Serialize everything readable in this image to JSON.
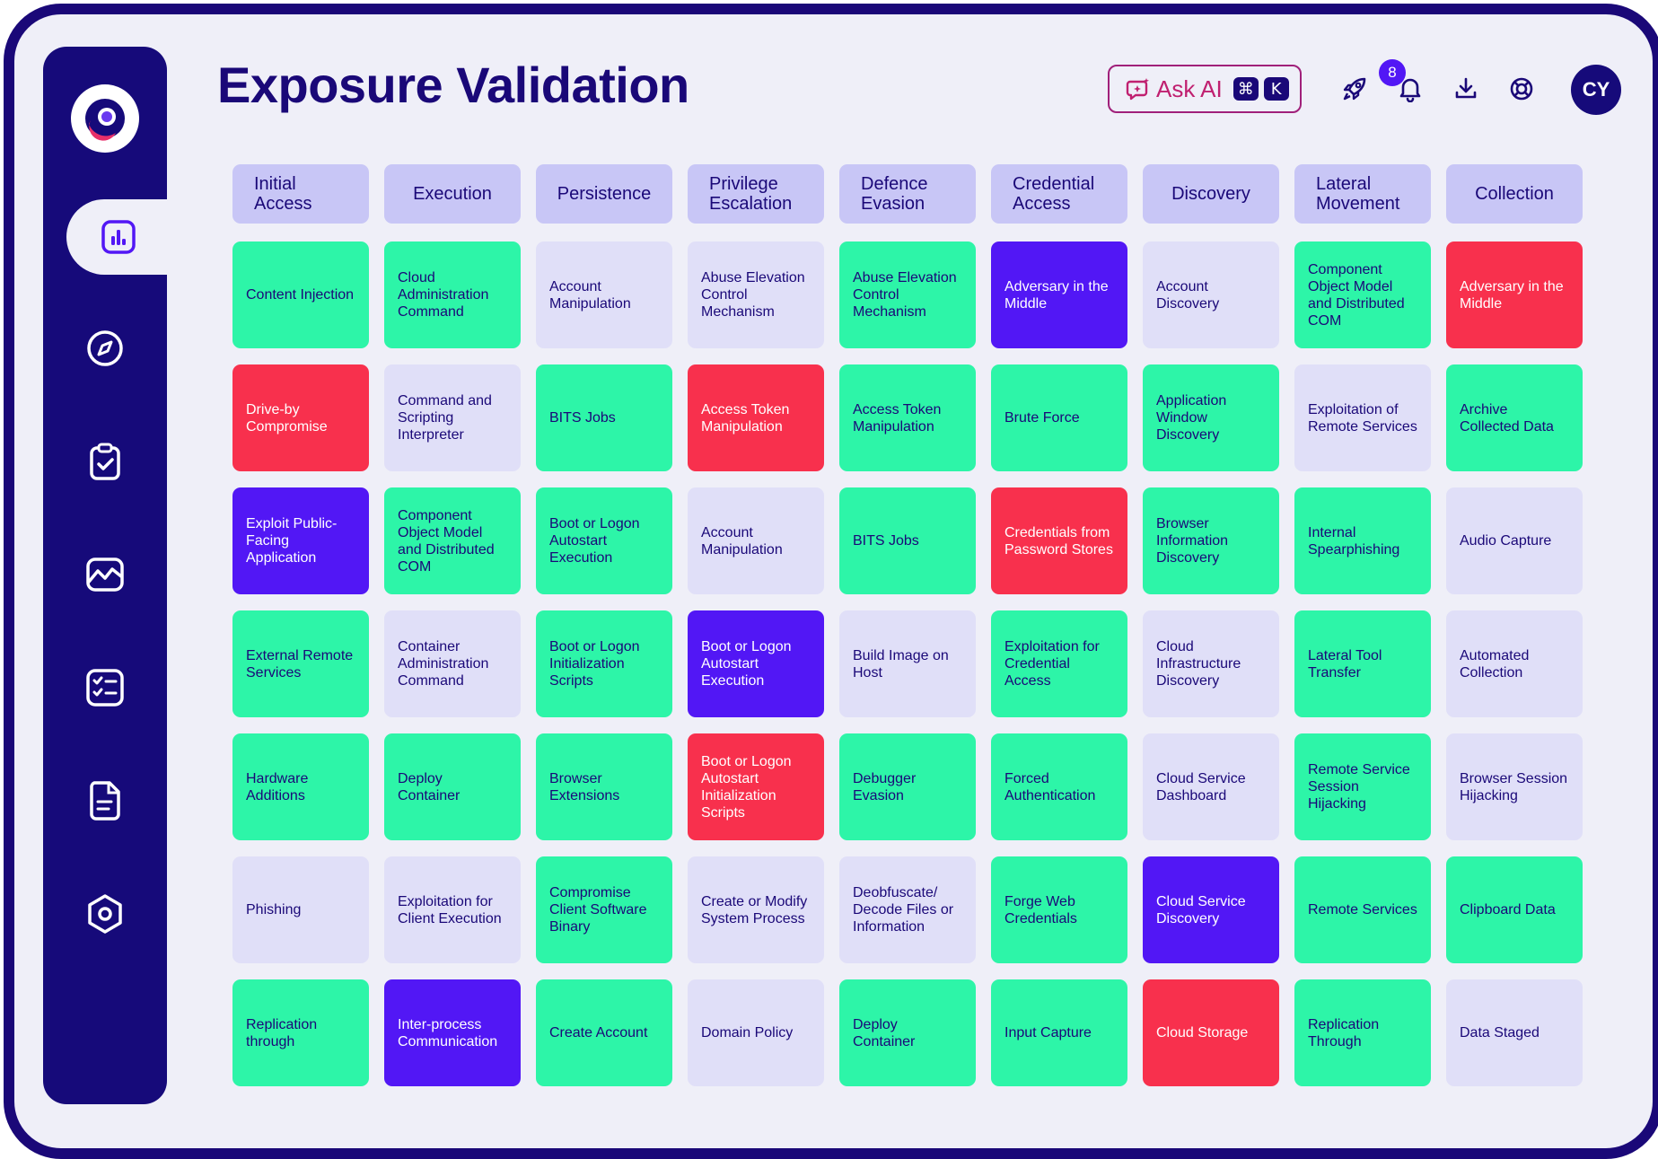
{
  "header": {
    "title": "Exposure Validation",
    "ask_ai": {
      "label": "Ask AI",
      "shortcut_key1": "⌘",
      "shortcut_key2": "K"
    },
    "notification_count": "8",
    "avatar_initials": "CY"
  },
  "colors": {
    "green": "#2df5a8",
    "red": "#f8304d",
    "purple": "#5217f5",
    "light": "#e0dff8",
    "navy": "#160a7a"
  },
  "sidebar": {
    "items": [
      {
        "icon": "chart-icon",
        "active": true
      },
      {
        "icon": "compass-icon",
        "active": false
      },
      {
        "icon": "clipboard-check-icon",
        "active": false
      },
      {
        "icon": "line-chart-icon",
        "active": false
      },
      {
        "icon": "checklist-icon",
        "active": false
      },
      {
        "icon": "document-icon",
        "active": false
      },
      {
        "icon": "settings-hexagon-icon",
        "active": false
      }
    ]
  },
  "matrix": {
    "columns": [
      {
        "title": "Initial Access",
        "cells": [
          {
            "label": "Content Injection",
            "status": "green"
          },
          {
            "label": "Drive-by Compromise",
            "status": "red"
          },
          {
            "label": "Exploit Public-Facing Application",
            "status": "purple"
          },
          {
            "label": "External Remote Services",
            "status": "green"
          },
          {
            "label": "Hardware Additions",
            "status": "green"
          },
          {
            "label": "Phishing",
            "status": "light"
          },
          {
            "label": "Replication through",
            "status": "green"
          }
        ]
      },
      {
        "title": "Execution",
        "cells": [
          {
            "label": "Cloud Administration Command",
            "status": "green"
          },
          {
            "label": "Command and Scripting Interpreter",
            "status": "light"
          },
          {
            "label": "Component Object Model and Distributed COM",
            "status": "green"
          },
          {
            "label": "Container Administration Command",
            "status": "light"
          },
          {
            "label": "Deploy Container",
            "status": "green"
          },
          {
            "label": "Exploitation for Client Execution",
            "status": "light"
          },
          {
            "label": "Inter-process Communication",
            "status": "purple"
          }
        ]
      },
      {
        "title": "Persistence",
        "cells": [
          {
            "label": "Account Manipulation",
            "status": "light"
          },
          {
            "label": "BITS Jobs",
            "status": "green"
          },
          {
            "label": "Boot or Logon Autostart Execution",
            "status": "green"
          },
          {
            "label": "Boot or Logon Initialization Scripts",
            "status": "green"
          },
          {
            "label": "Browser Extensions",
            "status": "green"
          },
          {
            "label": "Compromise Client Software Binary",
            "status": "green"
          },
          {
            "label": "Create Account",
            "status": "green"
          }
        ]
      },
      {
        "title": "Privilege Escalation",
        "cells": [
          {
            "label": "Abuse Elevation Control Mechanism",
            "status": "light"
          },
          {
            "label": "Access Token Manipulation",
            "status": "red"
          },
          {
            "label": "Account Manipulation",
            "status": "light"
          },
          {
            "label": "Boot or Logon Autostart Execution",
            "status": "purple"
          },
          {
            "label": "Boot or Logon Autostart Initialization Scripts",
            "status": "red"
          },
          {
            "label": "Create or Modify System Process",
            "status": "light"
          },
          {
            "label": "Domain Policy",
            "status": "light"
          }
        ]
      },
      {
        "title": "Defence Evasion",
        "cells": [
          {
            "label": "Abuse Elevation Control Mechanism",
            "status": "green"
          },
          {
            "label": "Access Token Manipulation",
            "status": "green"
          },
          {
            "label": "BITS Jobs",
            "status": "green"
          },
          {
            "label": "Build Image on Host",
            "status": "light"
          },
          {
            "label": "Debugger Evasion",
            "status": "green"
          },
          {
            "label": "Deobfuscate/ Decode Files or Information",
            "status": "light"
          },
          {
            "label": "Deploy Container",
            "status": "green"
          }
        ]
      },
      {
        "title": "Credential Access",
        "cells": [
          {
            "label": "Adversary in the Middle",
            "status": "purple"
          },
          {
            "label": "Brute Force",
            "status": "green"
          },
          {
            "label": "Credentials from Password Stores",
            "status": "red"
          },
          {
            "label": "Exploitation for Credential Access",
            "status": "green"
          },
          {
            "label": "Forced Authentication",
            "status": "green"
          },
          {
            "label": "Forge Web Credentials",
            "status": "green"
          },
          {
            "label": "Input Capture",
            "status": "green"
          }
        ]
      },
      {
        "title": "Discovery",
        "cells": [
          {
            "label": "Account Discovery",
            "status": "light"
          },
          {
            "label": "Application Window Discovery",
            "status": "green"
          },
          {
            "label": "Browser Information Discovery",
            "status": "green"
          },
          {
            "label": "Cloud Infrastructure Discovery",
            "status": "light"
          },
          {
            "label": "Cloud Service Dashboard",
            "status": "light"
          },
          {
            "label": "Cloud Service Discovery",
            "status": "purple"
          },
          {
            "label": "Cloud Storage",
            "status": "red"
          }
        ]
      },
      {
        "title": "Lateral Movement",
        "cells": [
          {
            "label": "Component Object Model and Distributed COM",
            "status": "green"
          },
          {
            "label": "Exploitation of Remote Services",
            "status": "light"
          },
          {
            "label": "Internal Spearphishing",
            "status": "green"
          },
          {
            "label": "Lateral Tool Transfer",
            "status": "green"
          },
          {
            "label": "Remote Service Session Hijacking",
            "status": "green"
          },
          {
            "label": "Remote Services",
            "status": "green"
          },
          {
            "label": "Replication Through",
            "status": "green"
          }
        ]
      },
      {
        "title": "Collection",
        "cells": [
          {
            "label": "Adversary in the Middle",
            "status": "red"
          },
          {
            "label": "Archive Collected Data",
            "status": "green"
          },
          {
            "label": "Audio Capture",
            "status": "light"
          },
          {
            "label": "Automated Collection",
            "status": "light"
          },
          {
            "label": "Browser Session Hijacking",
            "status": "light"
          },
          {
            "label": "Clipboard Data",
            "status": "green"
          },
          {
            "label": "Data Staged",
            "status": "light"
          }
        ]
      }
    ]
  }
}
